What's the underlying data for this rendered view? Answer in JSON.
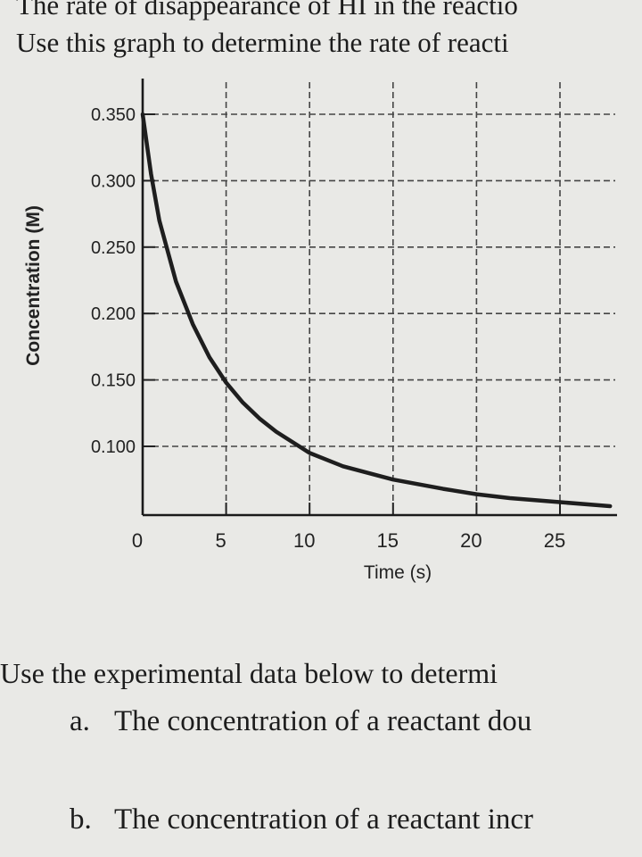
{
  "text": {
    "line1": "The rate of disappearance of HI in the reactio",
    "line2": "Use this graph to determine the rate of reacti",
    "line3": "Use the experimental data below to determi",
    "item_a_marker": "a.",
    "item_a_text": "The concentration of a reactant dou",
    "item_b_marker": "b.",
    "item_b_text": "The concentration of a reactant incr"
  },
  "chart_data": {
    "type": "line",
    "xlabel": "Time (s)",
    "ylabel": "Concentration (M)",
    "x_ticks": [
      0,
      5,
      10,
      15,
      20,
      25
    ],
    "x_tick_labels": [
      "0",
      "5",
      "10",
      "15",
      "20",
      "25"
    ],
    "y_ticks": [
      0.1,
      0.15,
      0.2,
      0.25,
      0.3,
      0.35
    ],
    "y_tick_labels": [
      "0.100",
      "0.150",
      "0.200",
      "0.250",
      "0.300",
      "0.350"
    ],
    "xlim": [
      0,
      28
    ],
    "ylim": [
      0.05,
      0.36
    ],
    "grid": true,
    "grid_style": "dashed",
    "series": [
      {
        "color": "#1e1e1e",
        "x": [
          0,
          0.5,
          1,
          2,
          3,
          4,
          5,
          6,
          7,
          8,
          10,
          12,
          15,
          18,
          20,
          22,
          25,
          28
        ],
        "y": [
          0.35,
          0.305,
          0.27,
          0.224,
          0.192,
          0.167,
          0.148,
          0.133,
          0.121,
          0.111,
          0.095,
          0.085,
          0.075,
          0.068,
          0.064,
          0.061,
          0.058,
          0.055
        ]
      }
    ]
  }
}
